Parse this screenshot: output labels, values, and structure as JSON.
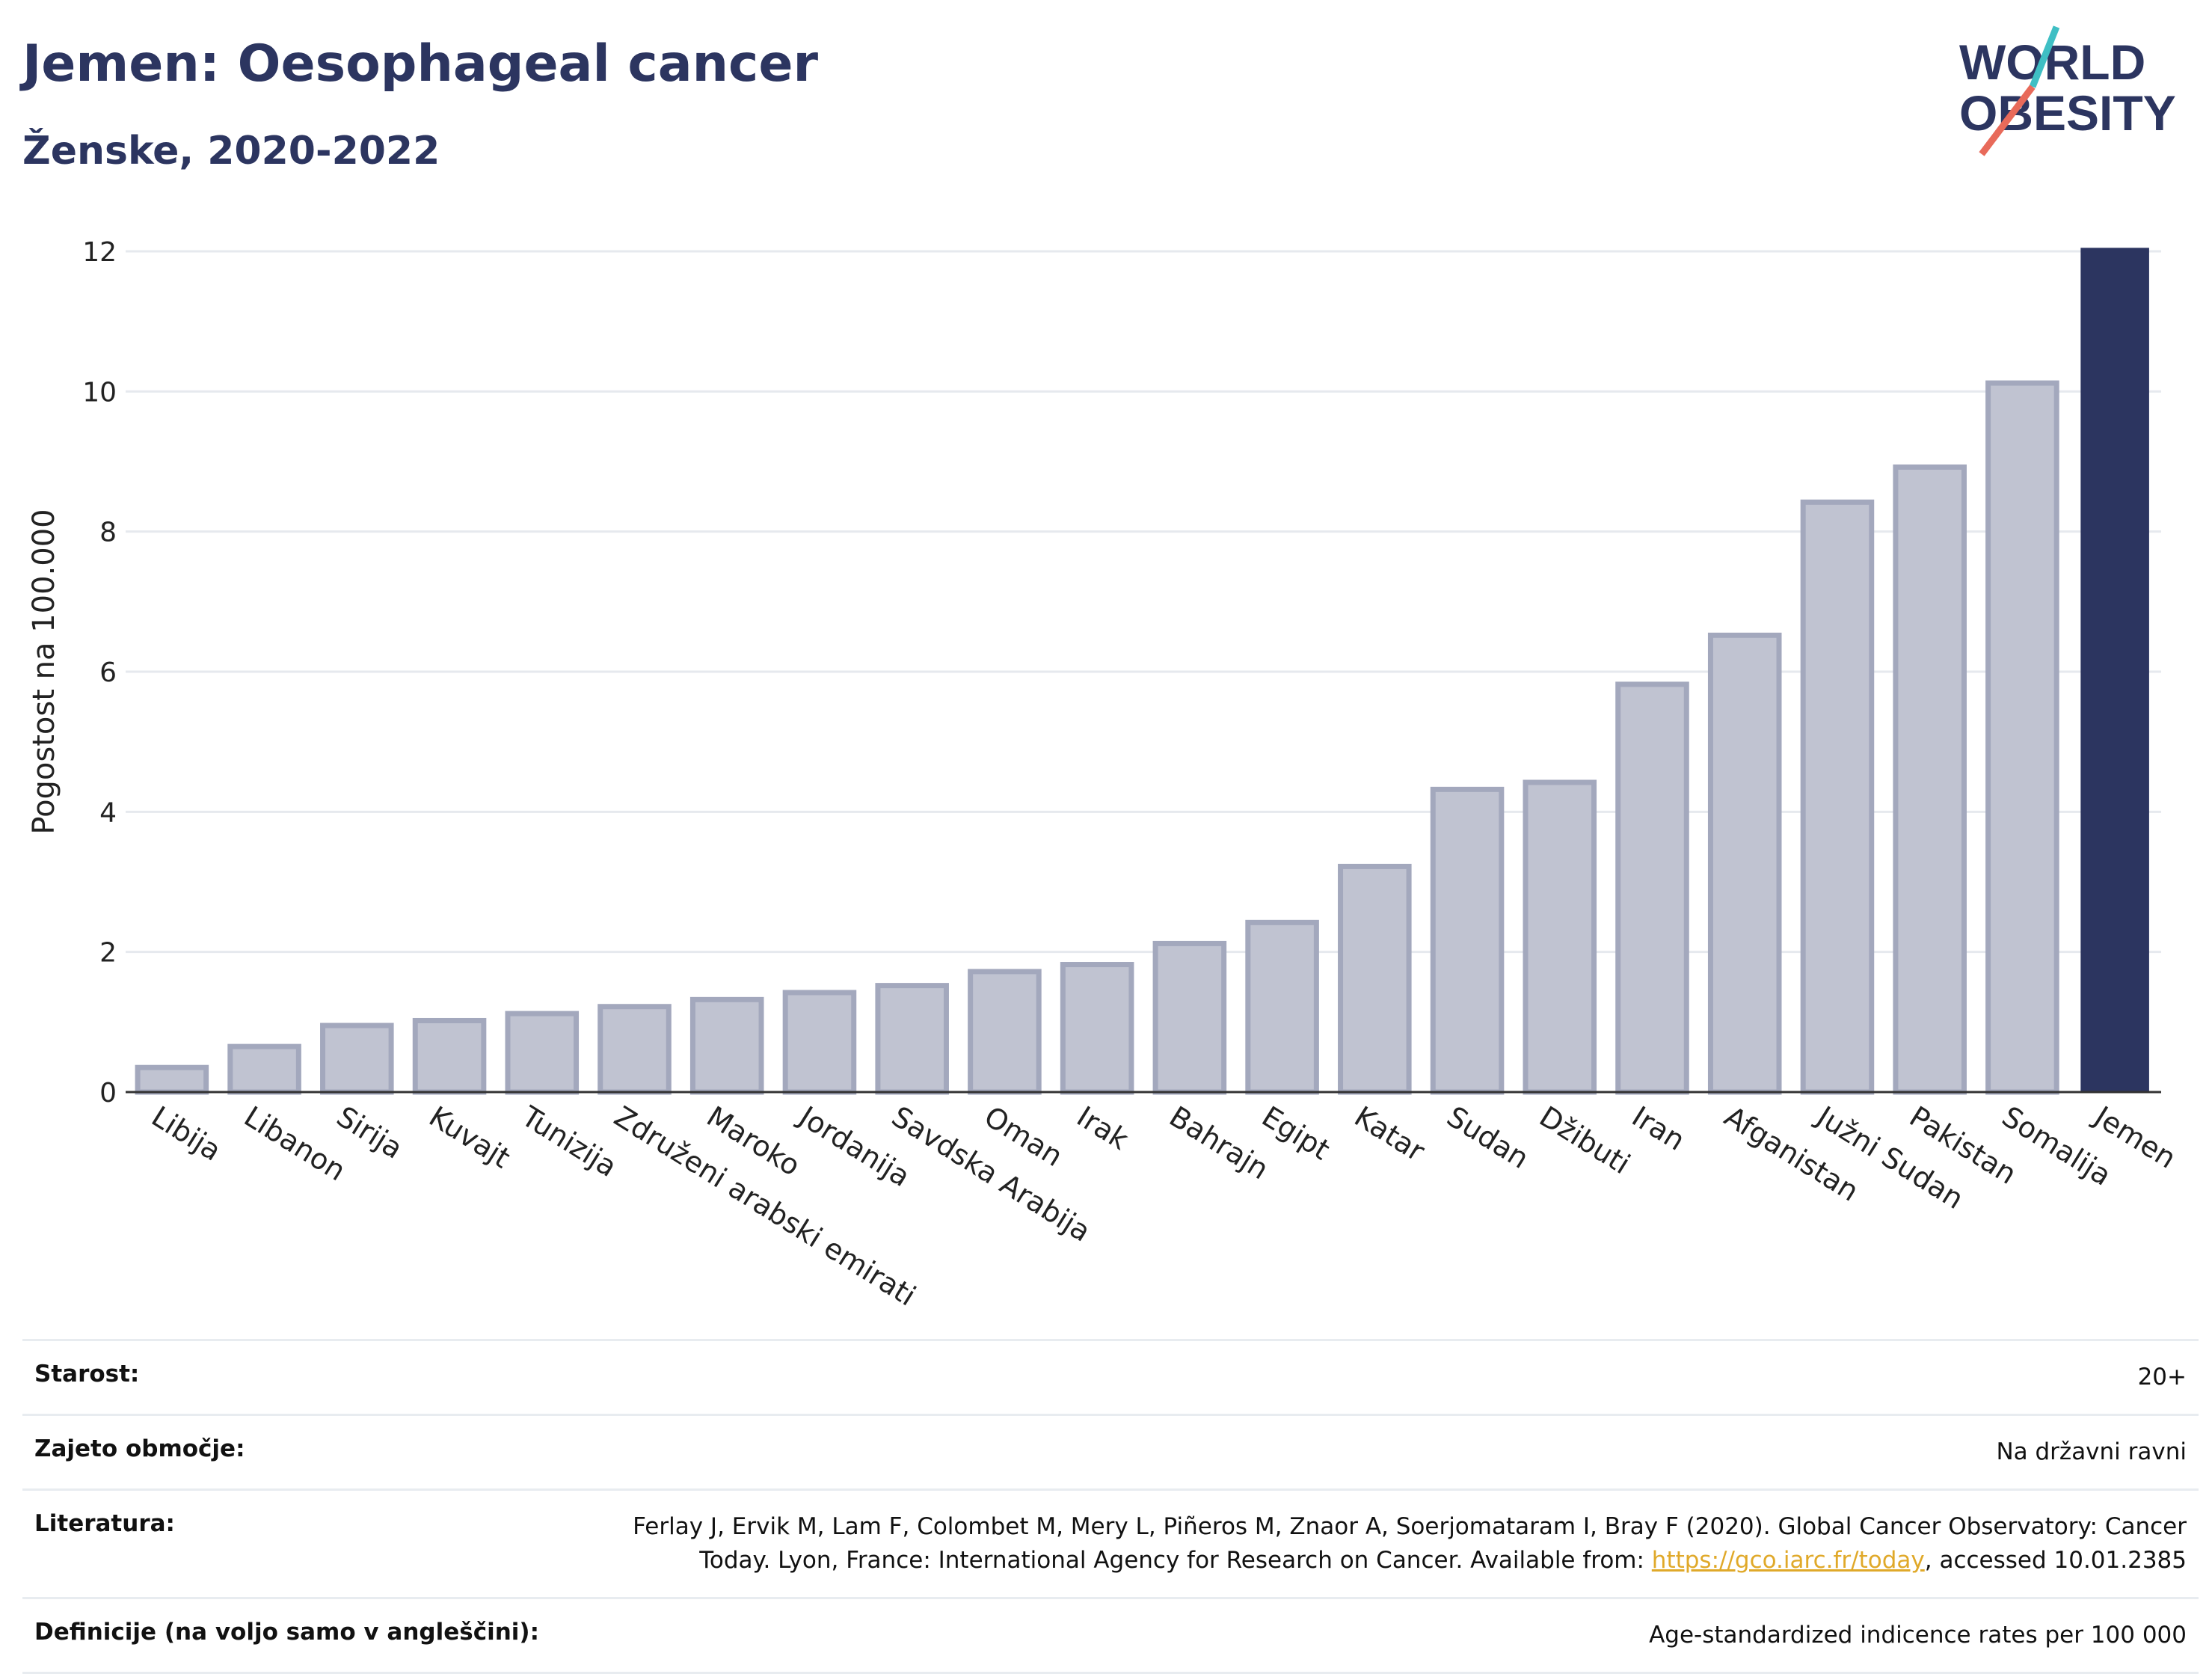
{
  "header": {
    "title": "Jemen: Oesophageal cancer",
    "subtitle": "Ženske, 2020-2022"
  },
  "logo": {
    "line1": "WORLD",
    "line2": "OBESITY",
    "icon": "world-obesity-logo"
  },
  "colors": {
    "title": "#2c3560",
    "bar_muted_fill": "#c0c3d1",
    "bar_muted_stroke": "#a3a8bd",
    "bar_highlight": "#2c3560",
    "grid": "#e6e9ee",
    "link": "#e0a92a"
  },
  "chart_data": {
    "type": "bar",
    "ylabel": "Pogostost na 100.000",
    "xlabel": "",
    "ylim": [
      0,
      12
    ],
    "yticks": [
      0,
      2,
      4,
      6,
      8,
      10,
      12
    ],
    "grid": true,
    "highlight": "Jemen",
    "categories": [
      "Libija",
      "Libanon",
      "Sirija",
      "Kuvajt",
      "Tunizija",
      "Združeni arabski emirati",
      "Maroko",
      "Jordanija",
      "Savdska Arabija",
      "Oman",
      "Irak",
      "Bahrajn",
      "Egipt",
      "Katar",
      "Sudan",
      "Džibuti",
      "Iran",
      "Afganistan",
      "Južni Sudan",
      "Pakistan",
      "Somalija",
      "Jemen"
    ],
    "values": [
      0.35,
      0.65,
      0.95,
      1.02,
      1.12,
      1.22,
      1.32,
      1.42,
      1.52,
      1.72,
      1.82,
      2.12,
      2.42,
      3.22,
      4.32,
      4.42,
      5.82,
      6.52,
      8.42,
      8.92,
      10.12,
      12.05
    ]
  },
  "info": {
    "rows": [
      {
        "label": "Starost:",
        "value": "20+"
      },
      {
        "label": "Zajeto območje:",
        "value": "Na državni ravni"
      },
      {
        "label": "Literatura:",
        "value_pre": "Ferlay J, Ervik M, Lam F, Colombet M, Mery L, Piñeros M, Znaor A, Soerjomataram I, Bray F (2020). Global Cancer Observatory: Cancer Today. Lyon, France: International Agency for Research on Cancer. Available from: ",
        "link": "https://gco.iarc.fr/today",
        "value_post": ", accessed 10.01.2385"
      },
      {
        "label": "Definicije (na voljo samo v angleščini):",
        "value": "Age-standardized indicence rates per 100 000"
      }
    ]
  }
}
